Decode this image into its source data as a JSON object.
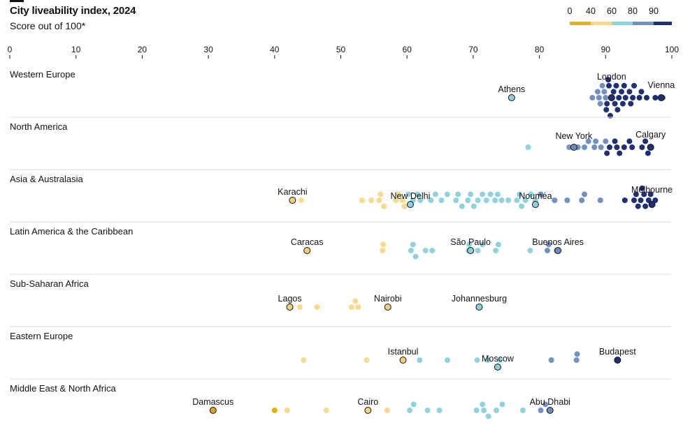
{
  "header": {
    "title": "City liveability index, 2024",
    "subtitle": "Score out of 100*"
  },
  "legend": {
    "labels": [
      "0",
      "40",
      "60",
      "80",
      "90"
    ],
    "bands": [
      {
        "from": 0,
        "to": 40,
        "color": "#e8b200"
      },
      {
        "from": 40,
        "to": 60,
        "color": "#fbd98a"
      },
      {
        "from": 60,
        "to": 80,
        "color": "#8fd3df"
      },
      {
        "from": 80,
        "to": 90,
        "color": "#7391c0"
      },
      {
        "from": 90,
        "to": 100,
        "color": "#1f2f73"
      }
    ]
  },
  "chart_data": {
    "type": "scatter",
    "title": "City liveability index, 2024",
    "subtitle": "Score out of 100*",
    "x_ticks": [
      0,
      10,
      20,
      30,
      40,
      50,
      60,
      70,
      80,
      90,
      100
    ],
    "xlim": [
      0,
      100
    ],
    "color_bins": [
      {
        "max": 40,
        "color": "#e8b200",
        "highlight_color": "#d9a51a"
      },
      {
        "max": 60,
        "color": "#fbd98a",
        "highlight_color": "#f6ce7c"
      },
      {
        "max": 80,
        "color": "#8fd3df",
        "highlight_color": "#8dcfdc"
      },
      {
        "max": 90,
        "color": "#7391c0",
        "highlight_color": "#6a8bbd"
      },
      {
        "max": 100,
        "color": "#1f2f73",
        "highlight_color": "#1f2f73"
      }
    ],
    "regions": [
      {
        "name": "Western Europe",
        "values": [
          88.0,
          88.8,
          89.0,
          89.2,
          89.5,
          89.8,
          90.0,
          90.1,
          90.2,
          90.4,
          90.5,
          90.7,
          91.0,
          91.2,
          91.4,
          91.6,
          91.8,
          92.0,
          92.4,
          92.6,
          92.8,
          93.0,
          93.6,
          93.8,
          94.1,
          94.3,
          95.1,
          95.4,
          96.2,
          97.5,
          98.6
        ],
        "highlights": [
          {
            "city": "Athens",
            "value": 75.8
          },
          {
            "city": "London",
            "value": 90.9
          },
          {
            "city": "Vienna",
            "value": 98.4
          }
        ]
      },
      {
        "name": "North America",
        "values": [
          78.3,
          84.5,
          85.8,
          86.8,
          87.4,
          88.3,
          88.5,
          89.3,
          90.0,
          90.2,
          90.6,
          91.4,
          91.7,
          92.1,
          92.8,
          93.6,
          94.0,
          95.5,
          96.0,
          96.4,
          96.7
        ],
        "highlights": [
          {
            "city": "New York",
            "value": 85.2
          },
          {
            "city": "Calgary",
            "value": 96.8
          }
        ]
      },
      {
        "name": "Asia & Australasia",
        "values": [
          44.0,
          53.2,
          54.6,
          55.8,
          56.0,
          56.5,
          58.3,
          58.7,
          59.3,
          59.6,
          60.2,
          60.9,
          61.6,
          62.0,
          63.6,
          64.3,
          65.2,
          66.1,
          67.4,
          67.7,
          68.3,
          69.2,
          69.6,
          70.1,
          70.7,
          71.4,
          72.0,
          72.6,
          73.3,
          73.7,
          74.3,
          75.3,
          76.6,
          77.0,
          77.3,
          77.9,
          78.7,
          79.4,
          80.2,
          82.3,
          84.2,
          86.4,
          86.8,
          89.2,
          92.9,
          94.3,
          94.6,
          94.9,
          95.3,
          95.5,
          95.8,
          96.0,
          96.5,
          96.8,
          97.5
        ],
        "highlights": [
          {
            "city": "Karachi",
            "value": 42.7
          },
          {
            "city": "New Delhi",
            "value": 60.5
          },
          {
            "city": "Nouméa",
            "value": 79.4
          },
          {
            "city": "Melbourne",
            "value": 97.0
          }
        ]
      },
      {
        "name": "Latin America & the Caribbean",
        "values": [
          56.3,
          56.4,
          60.6,
          60.9,
          61.3,
          62.8,
          63.8,
          69.3,
          69.4,
          70.7,
          71.4,
          73.4,
          73.8,
          78.6,
          81.2,
          81.4,
          82.6
        ],
        "highlights": [
          {
            "city": "Caracas",
            "value": 44.9
          },
          {
            "city": "São Paulo",
            "value": 69.6
          },
          {
            "city": "Buenos Aires",
            "value": 82.8
          }
        ]
      },
      {
        "name": "Sub-Saharan Africa",
        "values": [
          43.8,
          46.4,
          51.6,
          52.2,
          52.6
        ],
        "highlights": [
          {
            "city": "Lagos",
            "value": 42.3
          },
          {
            "city": "Nairobi",
            "value": 57.1
          },
          {
            "city": "Johannesburg",
            "value": 70.9
          }
        ]
      },
      {
        "name": "Eastern Europe",
        "values": [
          44.4,
          53.9,
          61.9,
          66.1,
          70.6,
          72.2,
          74.0,
          81.8,
          85.6,
          85.7
        ],
        "highlights": [
          {
            "city": "Istanbul",
            "value": 59.4
          },
          {
            "city": "Moscow",
            "value": 73.7
          },
          {
            "city": "Budapest",
            "value": 91.8
          }
        ]
      },
      {
        "name": "Middle East & North Africa",
        "values": [
          40.0,
          41.9,
          47.8,
          57.0,
          60.4,
          61.0,
          63.1,
          64.9,
          70.5,
          71.4,
          71.6,
          72.3,
          73.5,
          74.4,
          77.5,
          80.2,
          80.9
        ],
        "highlights": [
          {
            "city": "Damascus",
            "value": 30.7
          },
          {
            "city": "Cairo",
            "value": 54.1
          },
          {
            "city": "Abu Dhabi",
            "value": 81.6
          }
        ]
      }
    ]
  }
}
